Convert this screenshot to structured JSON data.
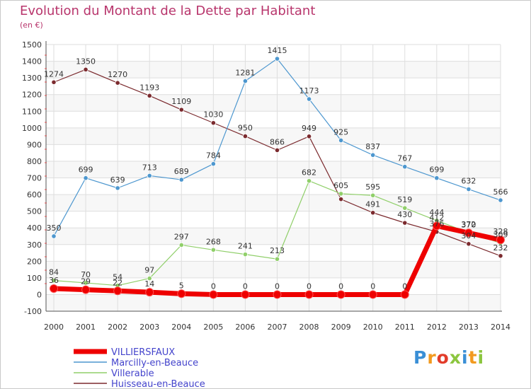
{
  "header": {
    "title": "Evolution du Montant de la Dette par Habitant",
    "subtitle": "(en €)"
  },
  "logo": {
    "text": "Proxiti",
    "colors": [
      "#3a8fd6",
      "#f29a1f",
      "#e23c2a",
      "#8cc63f",
      "#3a8fd6",
      "#f29a1f",
      "#8cc63f"
    ]
  },
  "chart_data": {
    "type": "line",
    "title": "Evolution du Montant de la Dette par Habitant",
    "ylabel": "(en €)",
    "xlabel": "",
    "x": [
      "2000",
      "2001",
      "2002",
      "2003",
      "2004",
      "2005",
      "2006",
      "2007",
      "2008",
      "2009",
      "2010",
      "2011",
      "2012",
      "2013",
      "2014"
    ],
    "ylim": [
      -100,
      1500
    ],
    "yticks": [
      "-100",
      "0",
      "100",
      "200",
      "300",
      "400",
      "500",
      "600",
      "700",
      "800",
      "900",
      "1000",
      "1100",
      "1200",
      "1300",
      "1400",
      "1500"
    ],
    "grid": true,
    "legend_position": "bottom-left",
    "series": [
      {
        "name": "Huisseau-en-Beauce",
        "color": "#7b2a2e",
        "values": [
          1274,
          1350,
          1270,
          1193,
          1109,
          1030,
          950,
          866,
          949,
          572,
          491,
          430,
          376,
          304,
          232
        ],
        "labels": [
          "1274",
          "1350",
          "1270",
          "1193",
          "1109",
          "1030",
          "950",
          "866",
          "949",
          "",
          "491",
          "430",
          "376",
          "304",
          "232"
        ]
      },
      {
        "name": "Marcilly-en-Beauce",
        "color": "#4d97cf",
        "values": [
          350,
          699,
          639,
          713,
          689,
          784,
          1281,
          1415,
          1173,
          925,
          837,
          767,
          699,
          632,
          566
        ],
        "labels": [
          "350",
          "699",
          "639",
          "713",
          "689",
          "784",
          "1281",
          "1415",
          "1173",
          "925",
          "837",
          "767",
          "699",
          "632",
          "566"
        ]
      },
      {
        "name": "Villerable",
        "color": "#90cf6a",
        "values": [
          84,
          70,
          54,
          97,
          297,
          268,
          241,
          213,
          682,
          605,
          595,
          519,
          444,
          372,
          309
        ],
        "labels": [
          "84",
          "70",
          "54",
          "97",
          "297",
          "268",
          "241",
          "213",
          "682",
          "605",
          "595",
          "519",
          "444",
          "372",
          "309"
        ]
      },
      {
        "name": "VILLIERSFAUX",
        "color": "#ee0000",
        "values": [
          36,
          29,
          22,
          14,
          5,
          0,
          0,
          0,
          0,
          0,
          0,
          0,
          412,
          370,
          328
        ],
        "labels": [
          "36",
          "29",
          "22",
          "14",
          "5",
          "0",
          "0",
          "0",
          "0",
          "0",
          "0",
          "0",
          "412",
          "370",
          "328"
        ]
      }
    ],
    "legend": [
      {
        "name": "VILLIERSFAUX",
        "color": "#ee0000",
        "style": "thick"
      },
      {
        "name": "Marcilly-en-Beauce",
        "color": "#4d97cf",
        "style": "thin"
      },
      {
        "name": "Villerable",
        "color": "#90cf6a",
        "style": "thin"
      },
      {
        "name": "Huisseau-en-Beauce",
        "color": "#7b2a2e",
        "style": "thin"
      }
    ]
  }
}
